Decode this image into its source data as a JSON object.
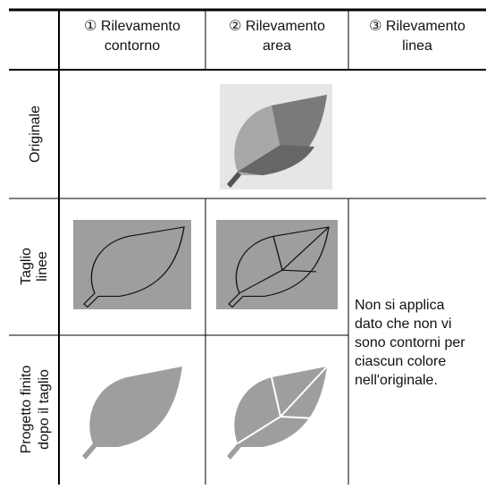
{
  "table": {
    "headers": [
      {
        "lines": [
          "① Rilevamento",
          "contorno"
        ]
      },
      {
        "lines": [
          "② Rilevamento",
          "area"
        ]
      },
      {
        "lines": [
          "③ Rilevamento",
          "linea"
        ]
      }
    ],
    "rows": [
      {
        "label": [
          "Originale"
        ]
      },
      {
        "label": [
          "Taglio",
          "linee"
        ]
      },
      {
        "label": [
          "Progetto finito",
          "dopo il taglio"
        ]
      }
    ],
    "note": [
      "Non si applica",
      "dato che non vi",
      "sono contorni per",
      "ciascun colore",
      "nell'originale."
    ]
  }
}
